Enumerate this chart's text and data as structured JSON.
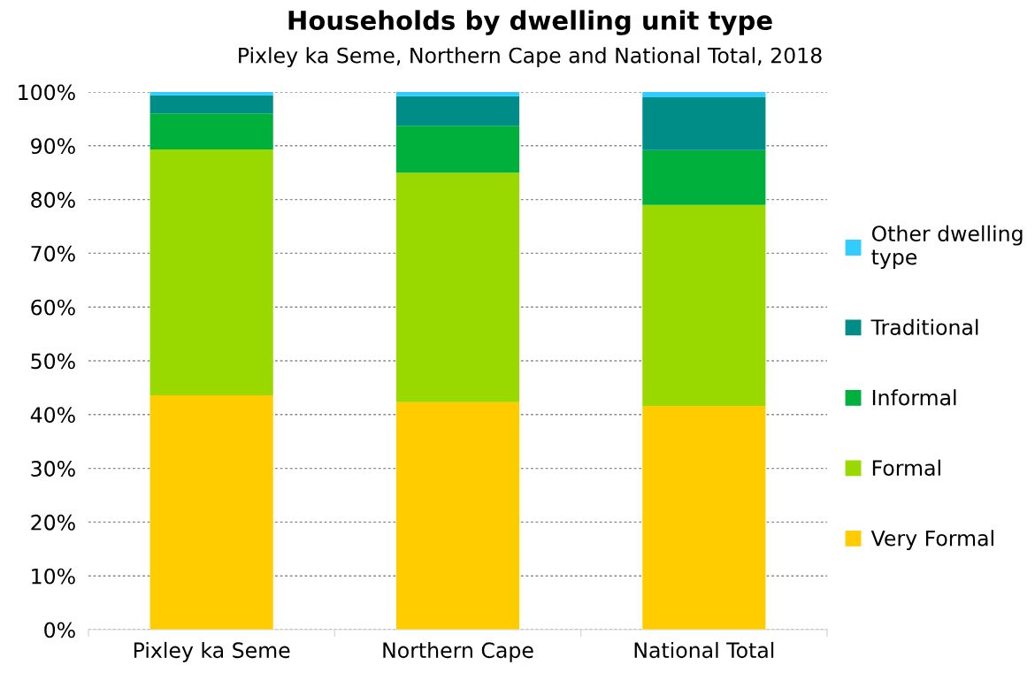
{
  "chart_data": {
    "type": "bar",
    "stacked": true,
    "title": "Households by dwelling unit type",
    "subtitle": "Pixley ka Seme, Northern Cape and National Total, 2018",
    "categories": [
      "Pixley ka Seme",
      "Northern Cape",
      "National Total"
    ],
    "series": [
      {
        "name": "Very Formal",
        "color": "#ffcc00",
        "values": [
          43.6,
          42.3,
          41.6
        ]
      },
      {
        "name": "Formal",
        "color": "#99d900",
        "values": [
          45.7,
          42.7,
          37.4
        ]
      },
      {
        "name": "Informal",
        "color": "#00b03c",
        "values": [
          6.7,
          8.7,
          10.2
        ]
      },
      {
        "name": "Traditional",
        "color": "#008c87",
        "values": [
          3.4,
          5.5,
          9.8
        ]
      },
      {
        "name": "Other dwelling\ntype",
        "color": "#33ccff",
        "values": [
          0.6,
          0.8,
          1.0
        ]
      }
    ],
    "ylim": [
      0,
      100
    ],
    "yticks": [
      {
        "value": 0,
        "label": "0%"
      },
      {
        "value": 10,
        "label": "10%"
      },
      {
        "value": 20,
        "label": "20%"
      },
      {
        "value": 30,
        "label": "30%"
      },
      {
        "value": 40,
        "label": "40%"
      },
      {
        "value": 50,
        "label": "50%"
      },
      {
        "value": 60,
        "label": "60%"
      },
      {
        "value": 70,
        "label": "70%"
      },
      {
        "value": 80,
        "label": "80%"
      },
      {
        "value": 90,
        "label": "90%"
      },
      {
        "value": 100,
        "label": "100%"
      }
    ],
    "grid": "y",
    "legend": "right"
  }
}
